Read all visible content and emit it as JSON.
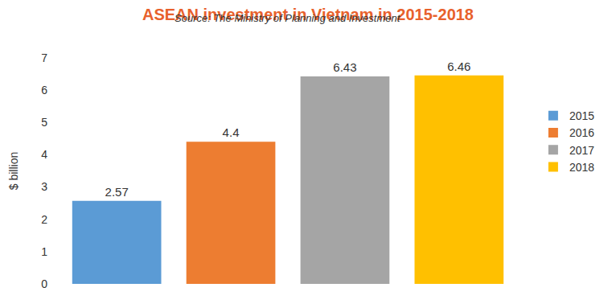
{
  "chart_data": {
    "type": "bar",
    "title": "ASEAN investment in Vietnam in 2015-2018",
    "subtitle": "Source: The Ministry of Planning and Investment",
    "y_label": "$ billion",
    "categories": [
      "2015",
      "2016",
      "2017",
      "2018"
    ],
    "values": [
      2.57,
      4.4,
      6.43,
      6.46
    ],
    "colors": [
      "#5b9bd5",
      "#ed7d31",
      "#a5a5a5",
      "#ffc000"
    ],
    "ylim": [
      0,
      7
    ],
    "yticks": [
      0,
      1,
      2,
      3,
      4,
      5,
      6,
      7
    ],
    "grid": false,
    "legend": "right",
    "data_labels": true,
    "tick_labels": "y"
  }
}
